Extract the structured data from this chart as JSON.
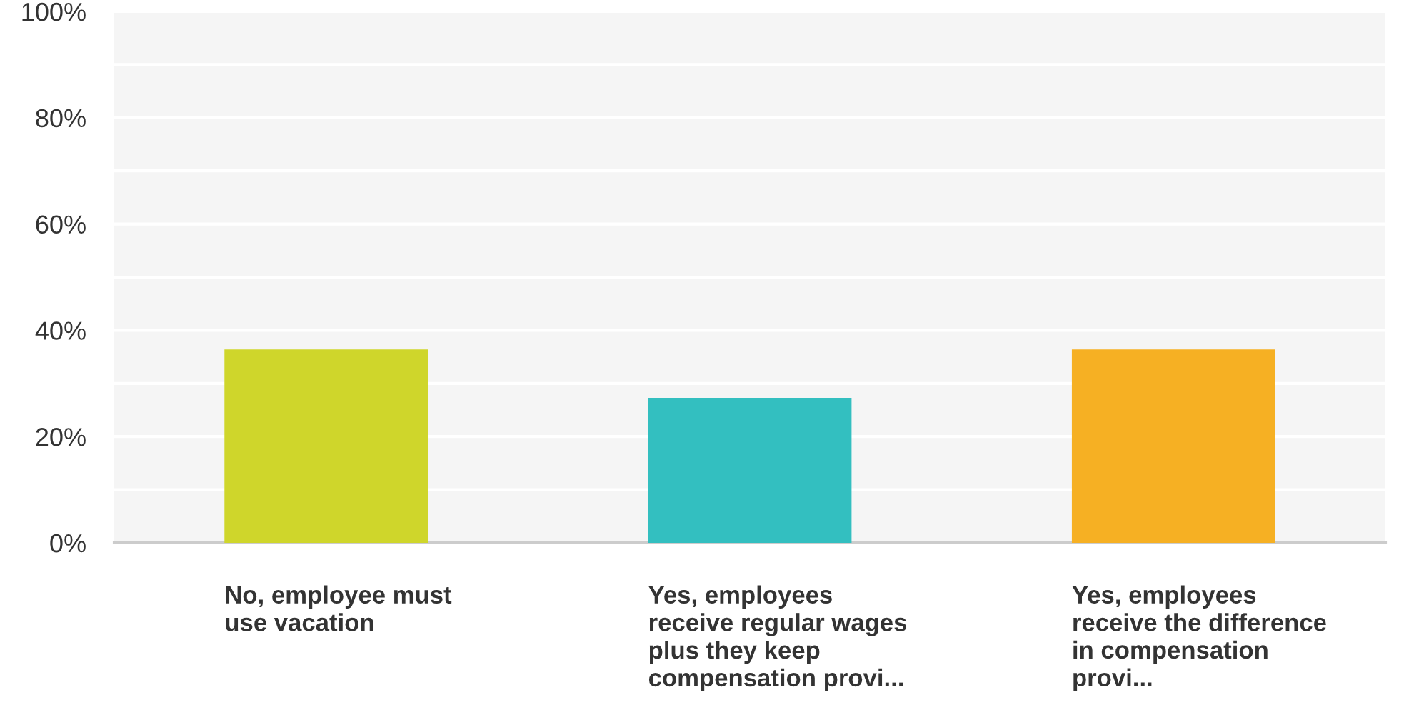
{
  "chart_data": {
    "type": "bar",
    "categories": [
      "No, employee must use vacation",
      "Yes, employees receive regular wages plus they keep compensation provi...",
      "Yes, employees receive the difference in compensation provi..."
    ],
    "values": [
      36.4,
      27.3,
      36.4
    ],
    "colors": [
      "#cfd62b",
      "#33bfc0",
      "#f6b023"
    ],
    "ylim": [
      0,
      100
    ],
    "yticks": [
      {
        "value": 0,
        "label": "0%"
      },
      {
        "value": 10,
        "label": null
      },
      {
        "value": 20,
        "label": "20%"
      },
      {
        "value": 30,
        "label": null
      },
      {
        "value": 40,
        "label": "40%"
      },
      {
        "value": 50,
        "label": null
      },
      {
        "value": 60,
        "label": "60%"
      },
      {
        "value": 70,
        "label": null
      },
      {
        "value": 80,
        "label": "80%"
      },
      {
        "value": 90,
        "label": null
      },
      {
        "value": 100,
        "label": "100%"
      }
    ],
    "grid": "y"
  }
}
